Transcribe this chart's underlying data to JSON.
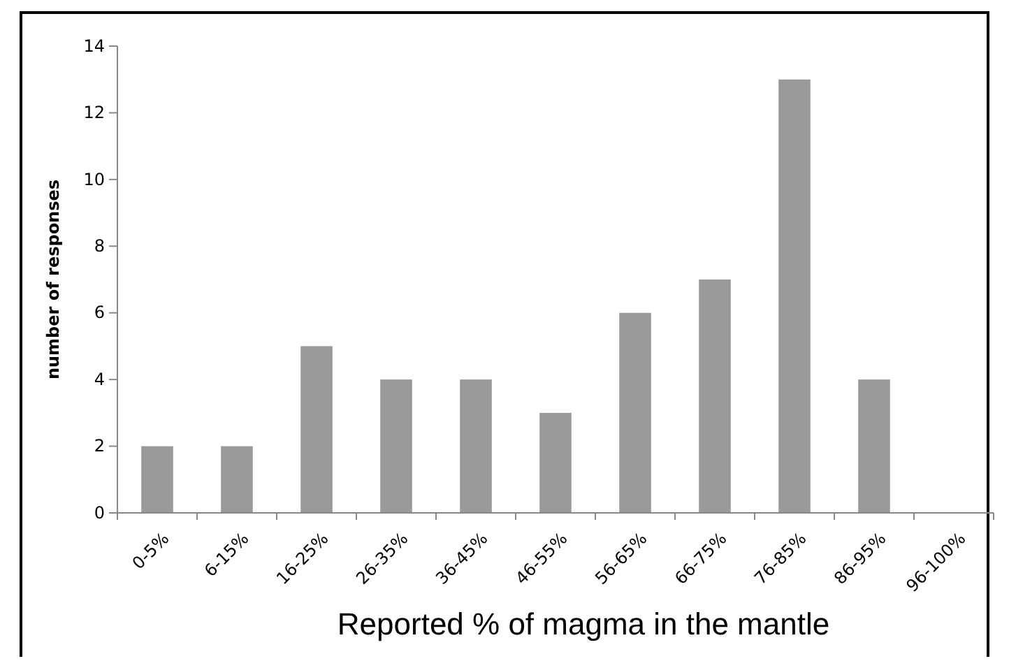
{
  "chart_data": {
    "type": "bar",
    "xlabel": "Reported % of magma in the mantle",
    "ylabel": "number of responses",
    "categories": [
      "0-5%",
      "6-15%",
      "16-25%",
      "26-35%",
      "36-45%",
      "46-55%",
      "56-65%",
      "66-75%",
      "76-85%",
      "86-95%",
      "96-100%"
    ],
    "values": [
      2,
      2,
      5,
      4,
      4,
      3,
      6,
      7,
      13,
      4,
      0
    ],
    "color": "#999999",
    "ylim": [
      0,
      14
    ],
    "yticks": [
      0,
      2,
      4,
      6,
      8,
      10,
      12,
      14
    ],
    "grid": false
  }
}
